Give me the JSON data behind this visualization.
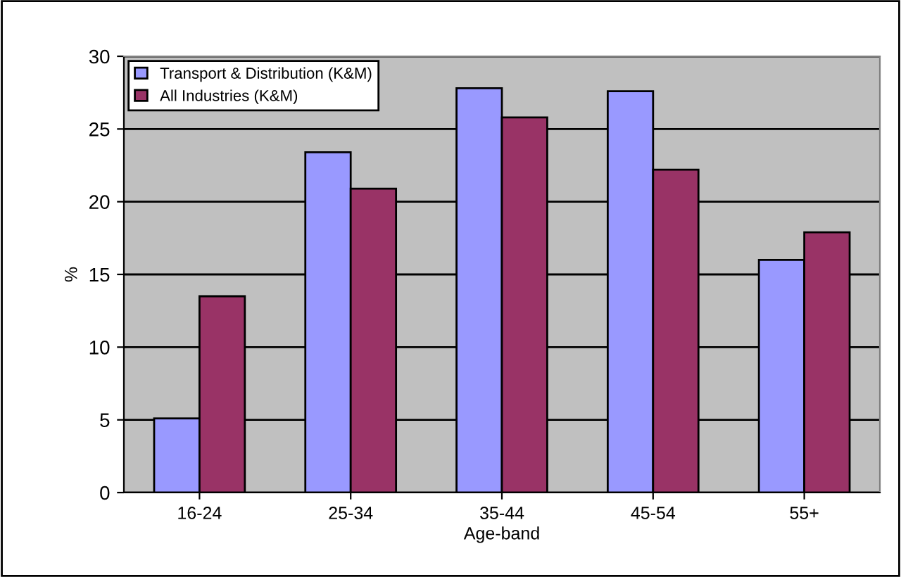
{
  "chart_data": {
    "type": "bar",
    "xlabel": "Age-band",
    "ylabel": "%",
    "categories": [
      "16-24",
      "25-34",
      "35-44",
      "45-54",
      "55+"
    ],
    "series": [
      {
        "name": "Transport & Distribution (K&M)",
        "color": "#9999ff",
        "values": [
          5.1,
          23.4,
          27.8,
          27.6,
          16.0
        ]
      },
      {
        "name": "All Industries (K&M)",
        "color": "#993366",
        "values": [
          13.5,
          20.9,
          25.8,
          22.2,
          17.9
        ]
      }
    ],
    "ylim": [
      0,
      30
    ],
    "yticks": [
      0,
      5,
      10,
      15,
      20,
      25,
      30
    ],
    "grid": "y",
    "legend": "top left"
  }
}
